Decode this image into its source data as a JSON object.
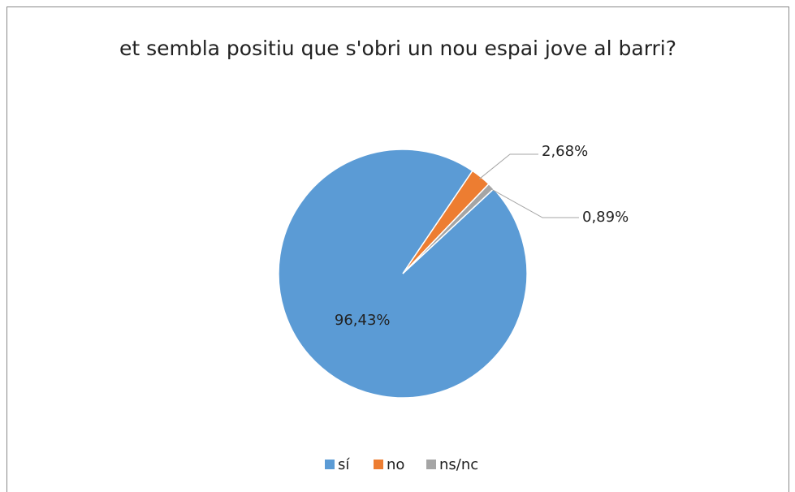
{
  "chart_data": {
    "type": "pie",
    "title": "et sembla positiu que s'obri un nou espai jove al barri?",
    "categories": [
      "sí",
      "no",
      "ns/nc"
    ],
    "values": [
      96.43,
      2.68,
      0.89
    ],
    "value_labels": [
      "96,43%",
      "2,68%",
      "0,89%"
    ],
    "colors": [
      "#5b9bd5",
      "#ed7d31",
      "#a5a5a5"
    ],
    "legend": "bottom"
  }
}
